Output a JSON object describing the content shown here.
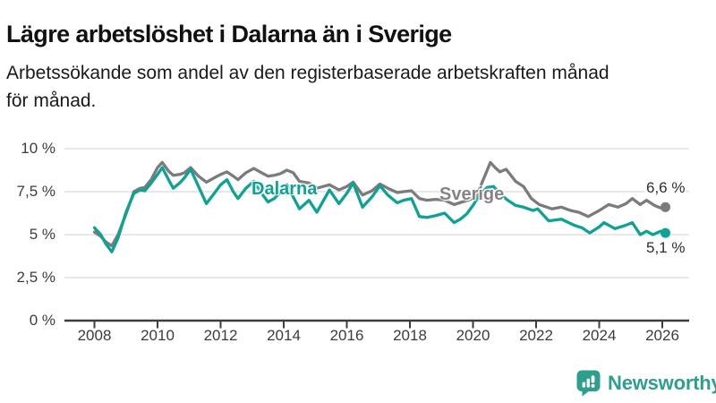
{
  "header": {
    "title": "Lägre arbetslöshet i Dalarna än i Sverige",
    "subtitle_line1": "Arbetssökande som andel av den registerbaserade arbetskraften månad",
    "subtitle_line2": "för månad."
  },
  "chart_data": {
    "type": "line",
    "title": "Lägre arbetslöshet i Dalarna än i Sverige",
    "xlabel": "",
    "ylabel": "Arbetssökande som andel av den registerbaserade arbetskraften",
    "grid": "horizontal gridlines on",
    "legend": "inline series labels",
    "x_axis": {
      "range": [
        2008,
        2026.4
      ],
      "ticks": [
        2008,
        2010,
        2012,
        2014,
        2016,
        2018,
        2020,
        2022,
        2024,
        2026
      ]
    },
    "y_axis": {
      "range": [
        0,
        10
      ],
      "unit": "%",
      "ticks": [
        {
          "value": 10,
          "label": "10 %"
        },
        {
          "value": 7.5,
          "label": "7,5 %"
        },
        {
          "value": 5,
          "label": "5 %"
        },
        {
          "value": 2.5,
          "label": "2,5 %"
        },
        {
          "value": 0,
          "label": "0 %"
        }
      ]
    },
    "series": [
      {
        "name": "Sverige",
        "inline_label": "Sverige",
        "color": "#7b7b7b",
        "end_label": "6,6 %",
        "end_value": 6.6,
        "points": [
          [
            2008.0,
            5.15
          ],
          [
            2008.2,
            4.9
          ],
          [
            2008.35,
            4.6
          ],
          [
            2008.55,
            4.35
          ],
          [
            2008.75,
            5.0
          ],
          [
            2009.0,
            6.2
          ],
          [
            2009.25,
            7.5
          ],
          [
            2009.45,
            7.7
          ],
          [
            2009.6,
            7.75
          ],
          [
            2009.8,
            8.2
          ],
          [
            2010.0,
            8.9
          ],
          [
            2010.15,
            9.2
          ],
          [
            2010.35,
            8.7
          ],
          [
            2010.5,
            8.45
          ],
          [
            2010.7,
            8.5
          ],
          [
            2010.85,
            8.6
          ],
          [
            2011.05,
            8.9
          ],
          [
            2011.3,
            8.4
          ],
          [
            2011.55,
            8.05
          ],
          [
            2011.8,
            8.3
          ],
          [
            2012.0,
            8.5
          ],
          [
            2012.2,
            8.65
          ],
          [
            2012.4,
            8.4
          ],
          [
            2012.55,
            8.2
          ],
          [
            2012.8,
            8.6
          ],
          [
            2013.05,
            8.85
          ],
          [
            2013.3,
            8.6
          ],
          [
            2013.5,
            8.4
          ],
          [
            2013.7,
            8.45
          ],
          [
            2013.9,
            8.55
          ],
          [
            2014.1,
            8.75
          ],
          [
            2014.3,
            8.6
          ],
          [
            2014.5,
            8.1
          ],
          [
            2014.8,
            8.0
          ],
          [
            2015.05,
            7.7
          ],
          [
            2015.45,
            7.9
          ],
          [
            2015.75,
            7.6
          ],
          [
            2016.0,
            7.8
          ],
          [
            2016.2,
            8.05
          ],
          [
            2016.5,
            7.3
          ],
          [
            2016.8,
            7.55
          ],
          [
            2017.05,
            7.95
          ],
          [
            2017.3,
            7.7
          ],
          [
            2017.6,
            7.45
          ],
          [
            2017.8,
            7.5
          ],
          [
            2018.05,
            7.55
          ],
          [
            2018.3,
            7.1
          ],
          [
            2018.55,
            7.0
          ],
          [
            2018.8,
            7.05
          ],
          [
            2019.1,
            7.0
          ],
          [
            2019.4,
            6.75
          ],
          [
            2019.65,
            6.9
          ],
          [
            2019.85,
            7.0
          ],
          [
            2020.1,
            7.2
          ],
          [
            2020.35,
            8.3
          ],
          [
            2020.55,
            9.2
          ],
          [
            2020.7,
            8.9
          ],
          [
            2020.85,
            8.65
          ],
          [
            2021.05,
            8.8
          ],
          [
            2021.35,
            8.1
          ],
          [
            2021.6,
            7.8
          ],
          [
            2021.85,
            7.1
          ],
          [
            2022.1,
            6.75
          ],
          [
            2022.5,
            6.5
          ],
          [
            2022.8,
            6.6
          ],
          [
            2023.1,
            6.4
          ],
          [
            2023.35,
            6.3
          ],
          [
            2023.65,
            6.05
          ],
          [
            2024.0,
            6.4
          ],
          [
            2024.3,
            6.75
          ],
          [
            2024.6,
            6.6
          ],
          [
            2024.85,
            6.8
          ],
          [
            2025.05,
            7.1
          ],
          [
            2025.3,
            6.75
          ],
          [
            2025.5,
            7.0
          ],
          [
            2025.75,
            6.7
          ],
          [
            2025.95,
            6.55
          ],
          [
            2026.1,
            6.6
          ]
        ]
      },
      {
        "name": "Dalarna",
        "inline_label": "Dalarna",
        "color": "#0ea295",
        "end_label": "5,1 %",
        "end_value": 5.1,
        "points": [
          [
            2008.0,
            5.4
          ],
          [
            2008.2,
            5.0
          ],
          [
            2008.35,
            4.5
          ],
          [
            2008.55,
            4.0
          ],
          [
            2008.75,
            4.8
          ],
          [
            2009.0,
            6.3
          ],
          [
            2009.25,
            7.4
          ],
          [
            2009.45,
            7.6
          ],
          [
            2009.6,
            7.55
          ],
          [
            2009.8,
            8.0
          ],
          [
            2010.0,
            8.5
          ],
          [
            2010.15,
            8.9
          ],
          [
            2010.35,
            8.2
          ],
          [
            2010.5,
            7.7
          ],
          [
            2010.7,
            8.0
          ],
          [
            2010.85,
            8.3
          ],
          [
            2011.05,
            8.8
          ],
          [
            2011.3,
            7.8
          ],
          [
            2011.55,
            6.8
          ],
          [
            2011.8,
            7.4
          ],
          [
            2012.0,
            7.9
          ],
          [
            2012.2,
            8.2
          ],
          [
            2012.4,
            7.5
          ],
          [
            2012.55,
            7.1
          ],
          [
            2012.8,
            7.7
          ],
          [
            2013.05,
            8.1
          ],
          [
            2013.3,
            7.4
          ],
          [
            2013.5,
            6.9
          ],
          [
            2013.7,
            7.1
          ],
          [
            2013.9,
            7.5
          ],
          [
            2014.1,
            7.9
          ],
          [
            2014.3,
            7.2
          ],
          [
            2014.5,
            6.5
          ],
          [
            2014.8,
            7.0
          ],
          [
            2015.05,
            6.3
          ],
          [
            2015.45,
            7.6
          ],
          [
            2015.75,
            6.8
          ],
          [
            2016.0,
            7.4
          ],
          [
            2016.2,
            8.0
          ],
          [
            2016.5,
            6.6
          ],
          [
            2016.8,
            7.2
          ],
          [
            2017.05,
            7.85
          ],
          [
            2017.3,
            7.3
          ],
          [
            2017.6,
            6.85
          ],
          [
            2017.8,
            7.0
          ],
          [
            2018.05,
            7.1
          ],
          [
            2018.3,
            6.05
          ],
          [
            2018.55,
            6.0
          ],
          [
            2018.8,
            6.1
          ],
          [
            2019.1,
            6.25
          ],
          [
            2019.4,
            5.7
          ],
          [
            2019.6,
            5.9
          ],
          [
            2019.8,
            6.2
          ],
          [
            2020.0,
            6.7
          ],
          [
            2020.2,
            7.3
          ],
          [
            2020.45,
            7.75
          ],
          [
            2020.65,
            7.8
          ],
          [
            2020.9,
            7.3
          ],
          [
            2021.1,
            7.0
          ],
          [
            2021.35,
            6.7
          ],
          [
            2021.6,
            6.6
          ],
          [
            2021.9,
            6.4
          ],
          [
            2022.05,
            6.5
          ],
          [
            2022.4,
            5.8
          ],
          [
            2022.8,
            5.9
          ],
          [
            2023.2,
            5.55
          ],
          [
            2023.45,
            5.4
          ],
          [
            2023.7,
            5.1
          ],
          [
            2024.0,
            5.45
          ],
          [
            2024.15,
            5.7
          ],
          [
            2024.5,
            5.35
          ],
          [
            2024.85,
            5.55
          ],
          [
            2025.05,
            5.7
          ],
          [
            2025.3,
            5.0
          ],
          [
            2025.5,
            5.2
          ],
          [
            2025.7,
            5.0
          ],
          [
            2025.95,
            5.2
          ],
          [
            2026.1,
            5.1
          ]
        ]
      }
    ]
  },
  "branding": {
    "logo_text": "Newsworthy",
    "logo_color": "#2e9f8d",
    "logo_icon": "bar-chart-speech-bubble-icon"
  }
}
